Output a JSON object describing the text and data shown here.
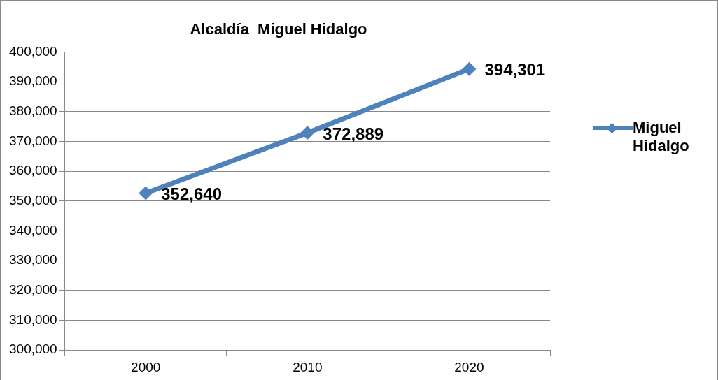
{
  "chart_data": {
    "type": "line",
    "title": "Alcaldía  Miguel Hidalgo",
    "categories": [
      "2000",
      "2010",
      "2020"
    ],
    "series": [
      {
        "name": "Miguel Hidalgo",
        "color": "#4f81bd",
        "values": [
          352640,
          372889,
          394301
        ],
        "value_labels": [
          "352,640",
          "372,889",
          "394,301"
        ]
      }
    ],
    "ylim": [
      300000,
      400000
    ],
    "yticks": [
      {
        "value": 300000,
        "label": "300,000"
      },
      {
        "value": 310000,
        "label": "310,000"
      },
      {
        "value": 320000,
        "label": "320,000"
      },
      {
        "value": 330000,
        "label": "330,000"
      },
      {
        "value": 340000,
        "label": "340,000"
      },
      {
        "value": 350000,
        "label": "350,000"
      },
      {
        "value": 360000,
        "label": "360,000"
      },
      {
        "value": 370000,
        "label": "370,000"
      },
      {
        "value": 380000,
        "label": "380,000"
      },
      {
        "value": 390000,
        "label": "390,000"
      },
      {
        "value": 400000,
        "label": "400,000"
      }
    ],
    "grid": "y",
    "legend": "right",
    "marker": "diamond",
    "line_style": "solid"
  }
}
